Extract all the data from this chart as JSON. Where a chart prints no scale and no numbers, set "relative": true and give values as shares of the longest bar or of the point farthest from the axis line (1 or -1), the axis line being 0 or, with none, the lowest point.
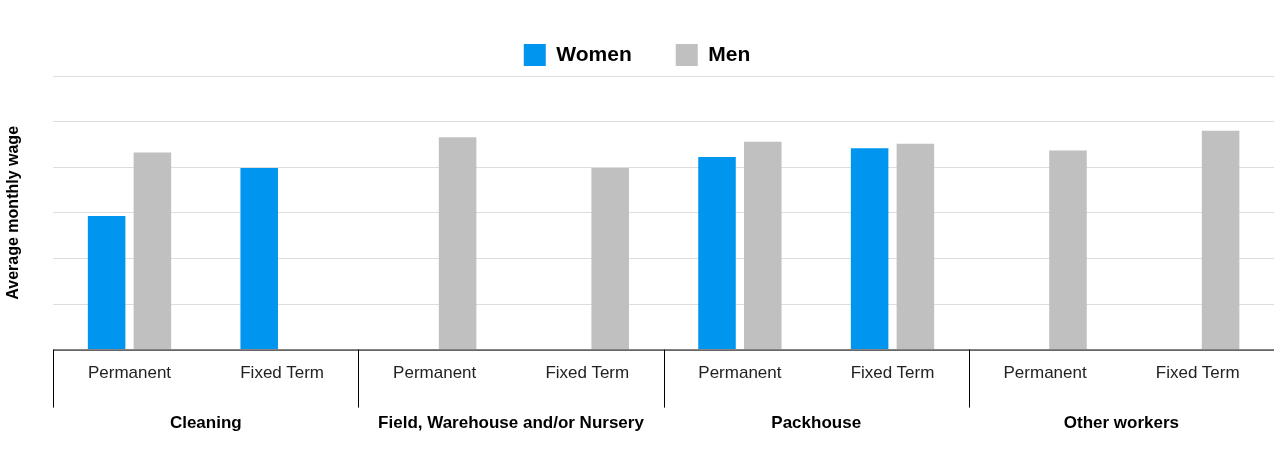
{
  "chart_data": {
    "type": "bar",
    "ylabel": "Average monthly wage",
    "relative": true,
    "grid": "y",
    "legend": "top",
    "categories": [
      "Permanent",
      "Fixed Term",
      "Permanent",
      "Fixed Term",
      "Permanent",
      "Fixed Term",
      "Permanent",
      "Fixed Term"
    ],
    "annotations": [
      "Cleaning",
      "Field, Warehouse and/or Nursery",
      "Packhouse",
      "Other workers"
    ],
    "series": [
      {
        "name": "Women",
        "color": "#0096f0",
        "values": [
          0.61,
          0.83,
          null,
          null,
          0.88,
          0.92,
          null,
          null
        ]
      },
      {
        "name": "Men",
        "color": "#c0c0c0",
        "values": [
          0.9,
          null,
          0.97,
          0.83,
          0.95,
          0.94,
          0.91,
          1
        ]
      }
    ]
  }
}
